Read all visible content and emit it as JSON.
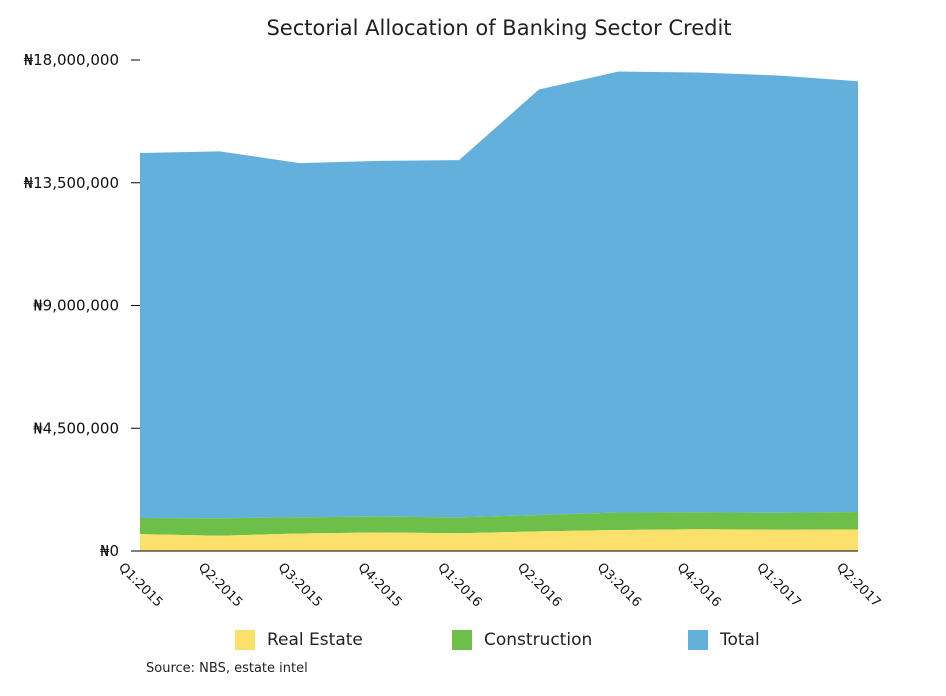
{
  "chart_data": {
    "type": "area",
    "stacked": true,
    "title": "Sectorial Allocation of Banking Sector Credit",
    "categories": [
      "Q1:2015",
      "Q2:2015",
      "Q3:2015",
      "Q4:2015",
      "Q1:2016",
      "Q2:2016",
      "Q3:2016",
      "Q4:2016",
      "Q1:2017",
      "Q2:2017"
    ],
    "y_tick_labels": [
      "₦0",
      "₦4,500,000",
      "₦9,000,000",
      "₦13,500,000",
      "₦18,000,000"
    ],
    "ylim": [
      0,
      18000000
    ],
    "grid": false,
    "legend_position": "bottom",
    "series": [
      {
        "name": "Real Estate",
        "color": "#FCE06C",
        "values": [
          620000,
          560000,
          640000,
          680000,
          650000,
          720000,
          770000,
          800000,
          780000,
          790000
        ]
      },
      {
        "name": "Construction",
        "color": "#6CC04A",
        "values": [
          590000,
          640000,
          600000,
          580000,
          580000,
          600000,
          640000,
          620000,
          620000,
          640000
        ]
      },
      {
        "name": "Total",
        "color": "#64B0DC",
        "values": [
          13380000,
          13450000,
          12980000,
          13040000,
          13100000,
          15600000,
          16170000,
          16120000,
          16030000,
          15790000
        ]
      }
    ]
  },
  "source": "Source: NBS, estate intel"
}
